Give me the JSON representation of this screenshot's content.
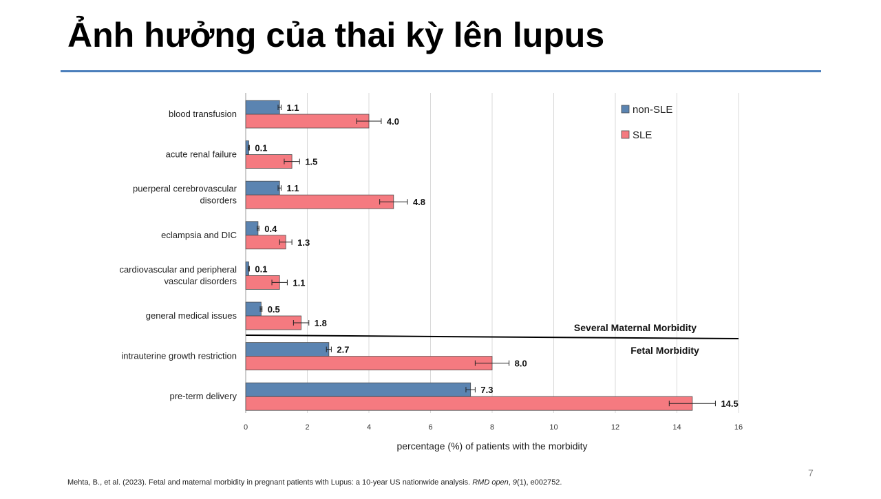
{
  "slide": {
    "title": "Ảnh hưởng của thai kỳ lên lupus",
    "page_number": "7",
    "citation_prefix": "Mehta, B., et al. (2023). Fetal and maternal morbidity in pregnant patients with Lupus: a 10-year US nationwide analysis. ",
    "citation_journal": "RMD open",
    "citation_mid": ", ",
    "citation_volume": "9",
    "citation_suffix": "(1), e002752."
  },
  "colors": {
    "title_rule": "#4a7ebb",
    "non_sle": "#5b84b1",
    "sle": "#f57a80",
    "grid": "#d9d9d9"
  },
  "chart_data": {
    "type": "bar",
    "orientation": "horizontal",
    "categories": [
      [
        "blood transfusion"
      ],
      [
        "acute renal failure"
      ],
      [
        "puerperal cerebrovascular",
        "disorders"
      ],
      [
        "eclampsia and DIC"
      ],
      [
        "cardiovascular and peripheral",
        "vascular disorders"
      ],
      [
        "general medical issues"
      ],
      [
        "intrauterine growth restriction"
      ],
      [
        "pre-term delivery"
      ]
    ],
    "series": [
      {
        "name": "non-SLE",
        "values": [
          1.1,
          0.1,
          1.1,
          0.4,
          0.1,
          0.5,
          2.7,
          7.3
        ],
        "labels": [
          "1.1",
          "0.1",
          "1.1",
          "0.4",
          "0.1",
          "0.5",
          "2.7",
          "7.3"
        ],
        "error": [
          0.05,
          0.02,
          0.05,
          0.03,
          0.02,
          0.03,
          0.08,
          0.15
        ]
      },
      {
        "name": "SLE",
        "values": [
          4.0,
          1.5,
          4.8,
          1.3,
          1.1,
          1.8,
          8.0,
          14.5
        ],
        "labels": [
          "4.0",
          "1.5",
          "4.8",
          "1.3",
          "1.1",
          "1.8",
          "8.0",
          "14.5"
        ],
        "error": [
          0.4,
          0.25,
          0.45,
          0.2,
          0.25,
          0.25,
          0.55,
          0.75
        ]
      }
    ],
    "xlabel": "percentage (%) of patients with the morbidity",
    "ylabel": "",
    "xlim": [
      0,
      16
    ],
    "xticks": [
      0,
      2,
      4,
      6,
      8,
      10,
      12,
      14,
      16
    ],
    "grid": "vertical",
    "legend": "top-right",
    "sections": {
      "maternal": "Several Maternal Morbidity",
      "fetal": "Fetal Morbidity"
    }
  }
}
